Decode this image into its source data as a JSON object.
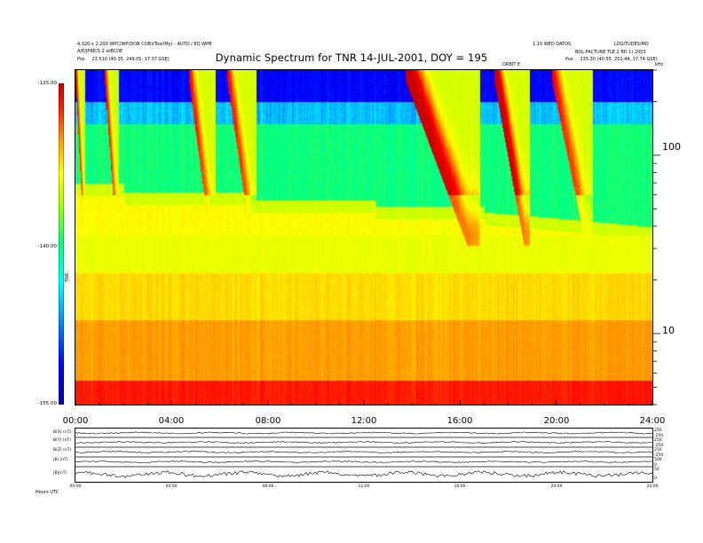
{
  "header": {
    "title": "Dynamic Spectrum for TNR 14-JUL-2001, DOY = 195",
    "left_line1": "4.320 x 2.200 WPC/WP(DOB COB)(Tool/My) - AUTO / EQ WPB",
    "left_line2": "A/E/JPRE/S 2 atBCDE",
    "left_line3_prefix": "Pos.",
    "left_line3": "23.510 (40.35, 249.05, 17.37 GSE)",
    "right_line1": "1.10 WED DATOS",
    "right_line2": "LOGITUDES/MO",
    "right_line3": "BOL-FACTURE TLE 2 BD 1) 2003",
    "right_line4_prefix": "Pos.",
    "right_line4": "235.30 (40.55, 251.44, 17.74 GSE)",
    "top_marker": "ORBIT E",
    "freq_unit": "kHz"
  },
  "colorbar": {
    "ticks": [
      "-125.00",
      "-140.00",
      "-155.00"
    ],
    "label": "TNR"
  },
  "chart_data": {
    "type": "heatmap",
    "title": "Dynamic Spectrum for TNR 14-JUL-2001, DOY = 195",
    "x_axis": {
      "range_hours": [
        0,
        24
      ],
      "ticks": [
        "00:00",
        "04:00",
        "08:00",
        "12:00",
        "16:00",
        "20:00",
        "24:00"
      ]
    },
    "y_axis": {
      "scale": "log",
      "unit": "kHz",
      "range_khz": [
        4,
        300
      ],
      "ticks": [
        "100",
        "10"
      ]
    },
    "color_scale": {
      "range": [
        -155,
        -125
      ],
      "ticks": [
        -125,
        -140,
        -155
      ],
      "colormap": [
        "#0a00a0",
        "#0000ff",
        "#00ffff",
        "#00ff80",
        "#c8ff00",
        "#ffff00",
        "#ff8000",
        "#ff0000",
        "#cc0000"
      ]
    },
    "features": [
      {
        "type": "type-III-burst",
        "start_hour": 0.0,
        "end_hour": 0.4
      },
      {
        "type": "type-III-burst",
        "start_hour": 1.2,
        "end_hour": 1.8
      },
      {
        "type": "type-III-burst",
        "start_hour": 4.7,
        "end_hour": 5.8
      },
      {
        "type": "type-III-burst",
        "start_hour": 6.3,
        "end_hour": 7.5
      },
      {
        "type": "type-III-burst",
        "start_hour": 13.7,
        "end_hour": 16.8
      },
      {
        "type": "type-III-burst",
        "start_hour": 17.4,
        "end_hour": 18.9
      },
      {
        "type": "type-III-burst",
        "start_hour": 19.8,
        "end_hour": 21.5
      }
    ],
    "lower_panels": [
      {
        "label": "B(X) (nT)",
        "ticks_right": [
          "250",
          "-250"
        ]
      },
      {
        "label": "B(Y) (nT)",
        "ticks_right": [
          "250",
          "-250"
        ]
      },
      {
        "label": "B(Z) (nT)",
        "ticks_right": [
          "250",
          "-250"
        ]
      },
      {
        "label": "|B| (nT)",
        "ticks_right": [
          "500",
          "0"
        ]
      },
      {
        "label": "|B|(nT)",
        "ticks_right": [
          "50",
          "0"
        ]
      }
    ],
    "lower_x_ticks": [
      "00:00",
      "04:00",
      "08:00",
      "12:00",
      "16:00",
      "20:00",
      "24:00"
    ],
    "lower_footer": "Hours  UTC"
  },
  "colors": {
    "background": "#ffffff",
    "axis": "#000000"
  }
}
